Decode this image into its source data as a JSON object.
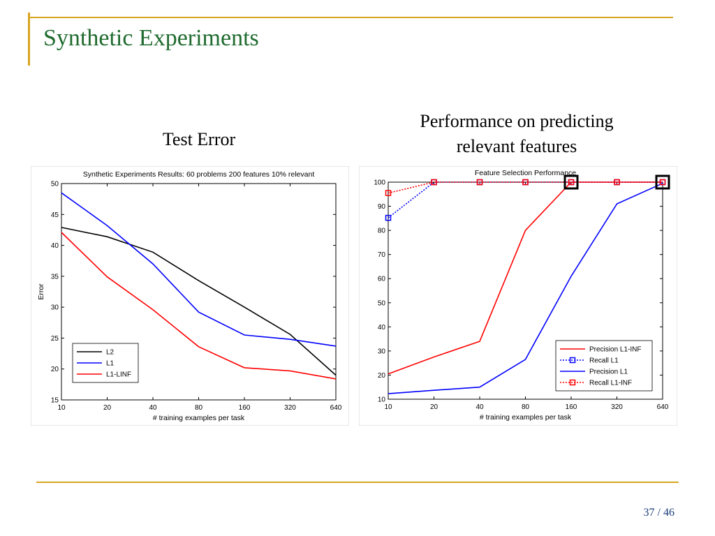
{
  "slide": {
    "title": "Synthetic Experiments",
    "subtitle_left": "Test Error",
    "subtitle_right_line1": "Performance on predicting",
    "subtitle_right_line2": "relevant features",
    "page_current": "37",
    "page_sep": "/",
    "page_total": "46"
  },
  "chart_data": [
    {
      "type": "line",
      "title": "Synthetic Experiments Results: 60 problems 200 features 10% relevant",
      "xlabel": "# training examples per task",
      "ylabel": "Error",
      "x_scale": "log2",
      "x": [
        10,
        20,
        40,
        80,
        160,
        320,
        640
      ],
      "xticks": [
        "10",
        "20",
        "40",
        "80",
        "160",
        "320",
        "640"
      ],
      "ylim": [
        15,
        50
      ],
      "yticks": [
        15,
        20,
        25,
        30,
        35,
        40,
        45,
        50
      ],
      "legend_position": "bottom-left",
      "series": [
        {
          "name": "L2",
          "color": "#000000",
          "style": "solid",
          "marker": "none",
          "values": [
            42.9,
            41.4,
            38.9,
            34.3,
            30.0,
            25.6,
            19.0
          ]
        },
        {
          "name": "L1",
          "color": "#0000ff",
          "style": "solid",
          "marker": "none",
          "values": [
            48.5,
            43.2,
            37.0,
            29.2,
            25.5,
            24.8,
            23.7
          ]
        },
        {
          "name": "L1-LINF",
          "color": "#ff0000",
          "style": "solid",
          "marker": "none",
          "values": [
            42.1,
            34.9,
            29.6,
            23.6,
            20.2,
            19.7,
            18.4
          ]
        }
      ]
    },
    {
      "type": "line",
      "title": "Feature Selection Performance",
      "xlabel": "# training examples per task",
      "ylabel": "",
      "x_scale": "log2",
      "x": [
        10,
        20,
        40,
        80,
        160,
        320,
        640
      ],
      "xticks": [
        "10",
        "20",
        "40",
        "80",
        "160",
        "320",
        "640"
      ],
      "ylim": [
        10,
        100
      ],
      "yticks": [
        10,
        20,
        30,
        40,
        50,
        60,
        70,
        80,
        90,
        100
      ],
      "legend_position": "bottom-right",
      "series": [
        {
          "name": "Precision L1-INF",
          "color": "#ff0000",
          "style": "solid",
          "marker": "none",
          "values": [
            20.5,
            27.5,
            34.0,
            80.0,
            100,
            100,
            100
          ]
        },
        {
          "name": "Recall L1",
          "color": "#0000ff",
          "style": "dotted",
          "marker": "square",
          "values": [
            85.2,
            100,
            100,
            100,
            100,
            100,
            100
          ]
        },
        {
          "name": "Precision L1",
          "color": "#0000ff",
          "style": "solid",
          "marker": "none",
          "values": [
            12.3,
            13.7,
            15.0,
            26.5,
            61.0,
            91.0,
            99.5
          ]
        },
        {
          "name": "Recall L1-INF",
          "color": "#ff0000",
          "style": "dotted",
          "marker": "square",
          "values": [
            95.5,
            100,
            100,
            100,
            100,
            100,
            100
          ]
        }
      ],
      "highlight_x": [
        160,
        640
      ]
    }
  ]
}
